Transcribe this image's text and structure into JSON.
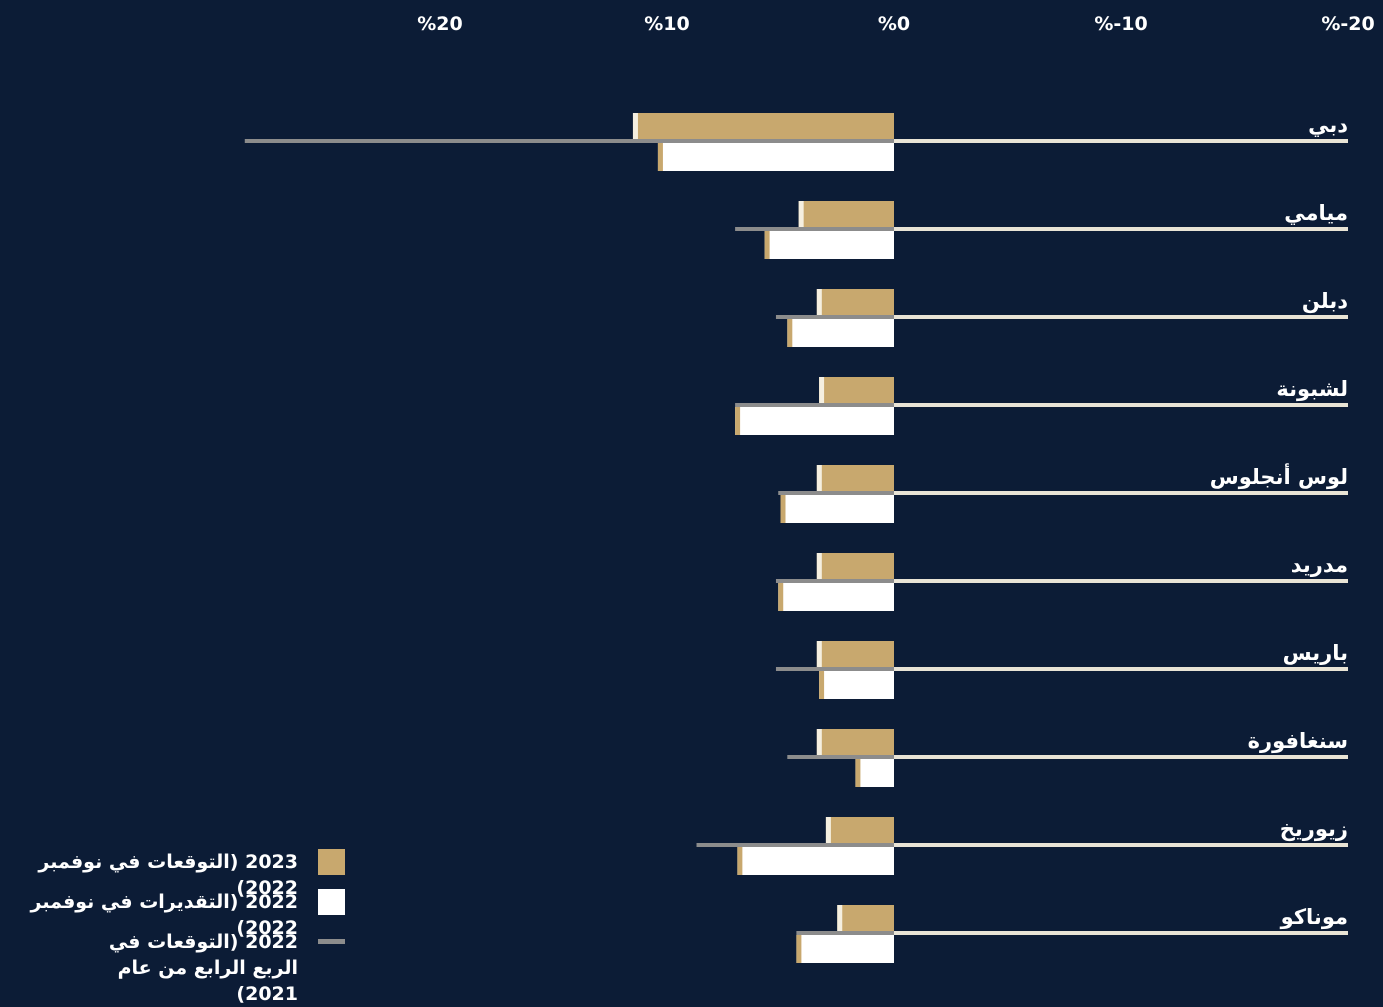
{
  "chart_data": {
    "type": "bar",
    "orientation": "horizontal",
    "x_ticks": [
      "%20",
      "%10",
      "%0",
      "%-10",
      "%-20"
    ],
    "x_tick_values": [
      20,
      10,
      0,
      -10,
      -20
    ],
    "xlim": [
      -20,
      20
    ],
    "x_reversed": true,
    "grid": false,
    "categories": [
      "دبي",
      "ميامي",
      "دبلن",
      "لشبونة",
      "لوس أنجلوس",
      "مدريد",
      "باريس",
      "سنغافورة",
      "زيوريخ",
      "موناكو"
    ],
    "series": [
      {
        "name": "2023 (التوقعات في نوفمبر 2022)",
        "mark": "bar",
        "color": "#c8a86e",
        "values": [
          11.5,
          4.2,
          3.4,
          3.3,
          3.4,
          3.4,
          3.4,
          3.4,
          3.0,
          2.5
        ]
      },
      {
        "name": "2022 (التقديرات في نوفمبر 2022)",
        "mark": "bar",
        "color": "#ffffff",
        "values": [
          10.4,
          5.7,
          4.7,
          7.0,
          5.0,
          5.1,
          3.3,
          1.7,
          6.9,
          4.3
        ]
      },
      {
        "name": "2022 (التوقعات في الربع الرابع من عام 2021)",
        "mark": "line",
        "color": "#8c8c8c",
        "values": [
          28.6,
          7.0,
          5.2,
          7.0,
          5.1,
          5.2,
          5.2,
          4.7,
          8.7,
          4.3
        ]
      }
    ],
    "legend_position": "bottom-left"
  },
  "legend": [
    {
      "label": "2023 (التوقعات في نوفمبر 2022)",
      "color": "#c8a86e"
    },
    {
      "label": "2022 (التقديرات في نوفمبر 2022)",
      "color": "#ffffff"
    },
    {
      "label": "2022 (التوقعات في الربع الرابع من عام 2021)",
      "color": "#8c8c8c"
    }
  ],
  "colors": {
    "background": "#0c1c36",
    "axis_line": "#e9e4d6",
    "text": "#ffffff",
    "cap": "#f5efe0"
  }
}
